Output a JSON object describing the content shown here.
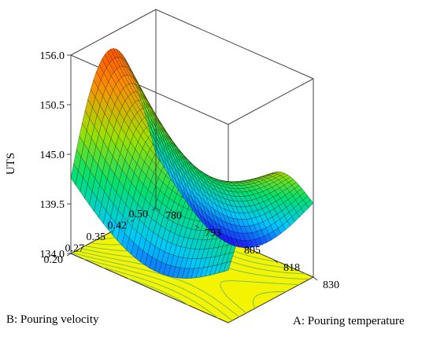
{
  "chart_data": {
    "type": "surface",
    "title": "",
    "zlabel": "UTS",
    "xlabel": "A: Pouring temperature",
    "ylabel": "B: Pouring velocity",
    "z_ticks": [
      "134.0",
      "139.5",
      "145.0",
      "150.5",
      "156.0"
    ],
    "zlim": [
      134.0,
      156.0
    ],
    "x_ticks": [
      "780",
      "793",
      "805",
      "818",
      "830"
    ],
    "xlim": [
      780,
      830
    ],
    "y_ticks": [
      "0.20",
      "0.27",
      "0.35",
      "0.42",
      "0.50"
    ],
    "ylim": [
      0.2,
      0.5
    ],
    "surface_samples": [
      {
        "temperature": 780,
        "velocity": 0.5,
        "uts": 150.5
      },
      {
        "temperature": 780,
        "velocity": 0.42,
        "uts": 154.0
      },
      {
        "temperature": 780,
        "velocity": 0.35,
        "uts": 155.0
      },
      {
        "temperature": 780,
        "velocity": 0.27,
        "uts": 148.0
      },
      {
        "temperature": 780,
        "velocity": 0.2,
        "uts": 140.0
      },
      {
        "temperature": 805,
        "velocity": 0.35,
        "uts": 141.0
      },
      {
        "temperature": 830,
        "velocity": 0.5,
        "uts": 135.0
      },
      {
        "temperature": 830,
        "velocity": 0.42,
        "uts": 143.5
      },
      {
        "temperature": 830,
        "velocity": 0.35,
        "uts": 148.0
      },
      {
        "temperature": 830,
        "velocity": 0.27,
        "uts": 146.0
      },
      {
        "temperature": 830,
        "velocity": 0.2,
        "uts": 143.0
      }
    ],
    "contour_floor_color": "#f4f400",
    "colormap": [
      "#1a1aff",
      "#00c8ff",
      "#00e070",
      "#a0e000",
      "#ff8c00",
      "#ff3000"
    ]
  }
}
